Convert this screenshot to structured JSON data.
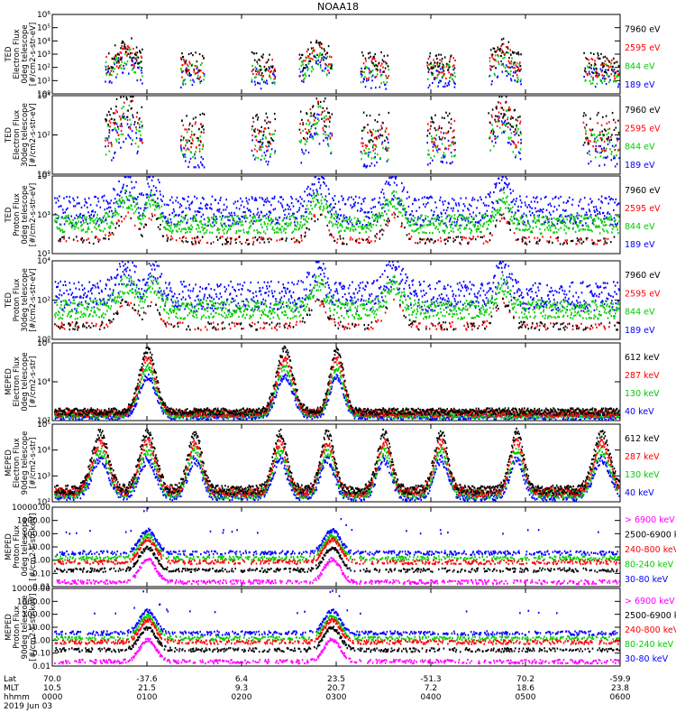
{
  "title": "NOAA18",
  "chart_data": [
    {
      "type": "scatter",
      "panel": 1,
      "ylabel_lines": [
        "TED",
        "Electron Flux",
        "0deg telescope",
        "[#/cm2-s-str-eV]"
      ],
      "y_ticks": [
        "10⁰",
        "10¹",
        "10²",
        "10³",
        "10⁴",
        "10⁵",
        "10⁶"
      ],
      "ylim_log10": [
        0,
        6
      ],
      "series": [
        {
          "name": "7960 eV",
          "color": "#000000"
        },
        {
          "name": "2595 eV",
          "color": "#ff0000"
        },
        {
          "name": "844 eV",
          "color": "#00cc00"
        },
        {
          "name": "189 eV",
          "color": "#0000ff"
        }
      ]
    },
    {
      "type": "scatter",
      "panel": 2,
      "ylabel_lines": [
        "TED",
        "Electron Flux",
        "30deg telescope",
        "[#/cm2-s-str-eV]"
      ],
      "y_ticks": [
        "10⁰",
        "10²",
        "10⁴"
      ],
      "ylim_log10": [
        0,
        4
      ],
      "series": [
        {
          "name": "7960 eV",
          "color": "#000000"
        },
        {
          "name": "2595 eV",
          "color": "#ff0000"
        },
        {
          "name": "844 eV",
          "color": "#00cc00"
        },
        {
          "name": "189 eV",
          "color": "#0000ff"
        }
      ]
    },
    {
      "type": "scatter",
      "panel": 3,
      "ylabel_lines": [
        "TED",
        "Proton Flux",
        "0deg telescope",
        "[#/cm2-s-str-eV]"
      ],
      "y_ticks": [
        "10¹",
        "10³",
        "10⁵"
      ],
      "ylim_log10": [
        0,
        5
      ],
      "series": [
        {
          "name": "7960 eV",
          "color": "#000000"
        },
        {
          "name": "2595 eV",
          "color": "#ff0000"
        },
        {
          "name": "844 eV",
          "color": "#00cc00"
        },
        {
          "name": "189 eV",
          "color": "#0000ff"
        }
      ]
    },
    {
      "type": "scatter",
      "panel": 4,
      "ylabel_lines": [
        "TED",
        "Proton Flux",
        "30deg telescope",
        "[#/cm2-s-str-eV]"
      ],
      "y_ticks": [
        "10⁰",
        "10²",
        "10⁴"
      ],
      "ylim_log10": [
        0,
        5
      ],
      "series": [
        {
          "name": "7960 eV",
          "color": "#000000"
        },
        {
          "name": "2595 eV",
          "color": "#ff0000"
        },
        {
          "name": "844 eV",
          "color": "#00cc00"
        },
        {
          "name": "189 eV",
          "color": "#0000ff"
        }
      ]
    },
    {
      "type": "scatter",
      "panel": 5,
      "ylabel_lines": [
        "MEPED",
        "Electron Flux",
        "0deg telescope",
        "[#/cm2-s-str]"
      ],
      "y_ticks": [
        "10²",
        "10⁴",
        "10⁶"
      ],
      "ylim_log10": [
        2,
        6
      ],
      "series": [
        {
          "name": "612 keV",
          "color": "#000000"
        },
        {
          "name": "287 keV",
          "color": "#ff0000"
        },
        {
          "name": "130 keV",
          "color": "#00cc00"
        },
        {
          "name": "40 keV",
          "color": "#0000ff"
        }
      ]
    },
    {
      "type": "scatter",
      "panel": 6,
      "ylabel_lines": [
        "MEPED",
        "Electron Flux",
        "90deg telescope",
        "[#/cm2-s-str]"
      ],
      "y_ticks": [
        "10²",
        "10³",
        "10⁴",
        "10⁵"
      ],
      "ylim_log10": [
        2,
        5
      ],
      "series": [
        {
          "name": "612 keV",
          "color": "#000000"
        },
        {
          "name": "287 keV",
          "color": "#ff0000"
        },
        {
          "name": "130 keV",
          "color": "#00cc00"
        },
        {
          "name": "40 keV",
          "color": "#0000ff"
        }
      ]
    },
    {
      "type": "scatter",
      "panel": 7,
      "ylabel_lines": [
        "MEPED",
        "Proton Flux",
        "0deg telescope",
        "[#/cm2-s-str-keV]"
      ],
      "y_ticks": [
        "0.01",
        "0.10",
        "1.00",
        "10.00",
        "100.00",
        "1000.00",
        "10000.00"
      ],
      "ylim_log10": [
        -2,
        4
      ],
      "series": [
        {
          "name": "> 6900 keV",
          "color": "#ff00ff"
        },
        {
          "name": "2500-6900 keV",
          "color": "#000000"
        },
        {
          "name": "240-800 keV",
          "color": "#ff0000"
        },
        {
          "name": "80-240 keV",
          "color": "#00cc00"
        },
        {
          "name": "30-80 keV",
          "color": "#0000ff"
        }
      ]
    },
    {
      "type": "scatter",
      "panel": 8,
      "ylabel_lines": [
        "MEPED",
        "Proton Flux",
        "90deg telescope",
        "[#/cm2-s-str-keV]"
      ],
      "y_ticks": [
        "0.01",
        "0.10",
        "1.00",
        "10.00",
        "100.00",
        "1000.00",
        "10000.00"
      ],
      "ylim_log10": [
        -2,
        4
      ],
      "series": [
        {
          "name": "> 6900 keV",
          "color": "#ff00ff"
        },
        {
          "name": "2500-6900 keV",
          "color": "#000000"
        },
        {
          "name": "240-800 keV",
          "color": "#ff0000"
        },
        {
          "name": "80-240 keV",
          "color": "#00cc00"
        },
        {
          "name": "30-80 keV",
          "color": "#0000ff"
        }
      ]
    }
  ],
  "xaxis": {
    "row_labels": [
      "Lat",
      "MLT",
      "hhmm",
      "2019 Jun 03"
    ],
    "ticks": [
      {
        "lat": "70.0",
        "mlt": "10.5",
        "hhmm": "0000"
      },
      {
        "lat": "-37.6",
        "mlt": "21.5",
        "hhmm": "0100"
      },
      {
        "lat": "6.4",
        "mlt": "9.3",
        "hhmm": "0200"
      },
      {
        "lat": "23.5",
        "mlt": "20.7",
        "hhmm": "0300"
      },
      {
        "lat": "-51.3",
        "mlt": "7.2",
        "hhmm": "0400"
      },
      {
        "lat": "70.2",
        "mlt": "18.6",
        "hhmm": "0500"
      },
      {
        "lat": "-59.9",
        "mlt": "23.8",
        "hhmm": "0600"
      }
    ]
  }
}
